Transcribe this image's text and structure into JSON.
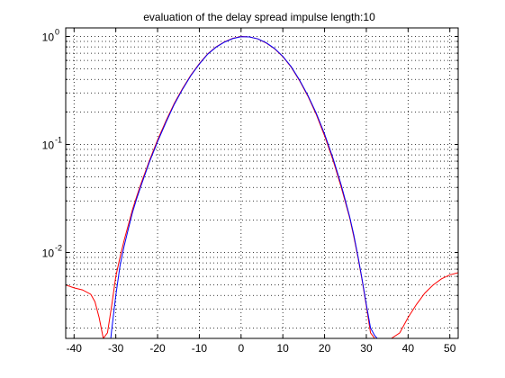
{
  "chart_data": {
    "type": "line",
    "title": "evaluation of the delay spread impulse length:10",
    "xlabel": "",
    "ylabel": "",
    "xlim": [
      -42,
      52
    ],
    "ylim": [
      0.0016,
      1.2
    ],
    "yscale": "log",
    "grid": true,
    "x_ticks": [
      -40,
      -30,
      -20,
      -10,
      0,
      10,
      20,
      30,
      40,
      50
    ],
    "x_tick_labels": [
      "-40",
      "-30",
      "-20",
      "-10",
      "0",
      "10",
      "20",
      "30",
      "40",
      "50"
    ],
    "y_ticks": [
      0.01,
      0.1,
      1
    ],
    "y_tick_labels": [
      {
        "base": "10",
        "exp": "-2"
      },
      {
        "base": "10",
        "exp": "-1"
      },
      {
        "base": "10",
        "exp": "0"
      }
    ],
    "series": [
      {
        "color": "#ff0000",
        "x": [
          -42,
          -40,
          -38,
          -36,
          -35,
          -34,
          -33,
          -32,
          -31,
          -30,
          -29,
          -28,
          -27,
          -26,
          -25,
          -24,
          -22,
          -20,
          -18,
          -16,
          -14,
          -12,
          -10,
          -8,
          -6,
          -4,
          -2,
          0,
          2,
          4,
          6,
          8,
          10,
          12,
          14,
          16,
          18,
          20,
          22,
          24,
          26,
          27,
          28,
          29,
          30,
          31,
          32,
          33,
          34,
          36,
          38,
          40,
          42,
          44,
          46,
          48,
          50,
          52
        ],
        "y": [
          0.005,
          0.0047,
          0.0045,
          0.0041,
          0.0035,
          0.0025,
          0.0016,
          0.0018,
          0.0032,
          0.006,
          0.009,
          0.013,
          0.018,
          0.025,
          0.033,
          0.043,
          0.07,
          0.11,
          0.165,
          0.24,
          0.33,
          0.44,
          0.56,
          0.69,
          0.8,
          0.89,
          0.96,
          1.0,
          0.99,
          0.95,
          0.87,
          0.77,
          0.65,
          0.52,
          0.39,
          0.28,
          0.19,
          0.12,
          0.072,
          0.04,
          0.021,
          0.014,
          0.009,
          0.0055,
          0.0032,
          0.0018,
          0.0016,
          0.0016,
          0.0016,
          0.0016,
          0.0018,
          0.0025,
          0.0033,
          0.0042,
          0.005,
          0.0057,
          0.0062,
          0.0065
        ]
      },
      {
        "color": "#0000ff",
        "x": [
          -31.2,
          -31,
          -30,
          -29,
          -28,
          -27,
          -26,
          -25,
          -24,
          -22,
          -20,
          -18,
          -16,
          -14,
          -12,
          -10,
          -8,
          -6,
          -4,
          -2,
          0,
          2,
          4,
          6,
          8,
          10,
          12,
          14,
          16,
          18,
          20,
          22,
          24,
          26,
          27,
          28,
          29,
          30,
          31,
          32,
          32.6
        ],
        "y": [
          0.0016,
          0.0019,
          0.004,
          0.0075,
          0.0115,
          0.0165,
          0.0235,
          0.0315,
          0.041,
          0.068,
          0.106,
          0.16,
          0.235,
          0.325,
          0.435,
          0.555,
          0.685,
          0.795,
          0.885,
          0.955,
          0.995,
          0.99,
          0.95,
          0.875,
          0.775,
          0.655,
          0.525,
          0.395,
          0.285,
          0.195,
          0.125,
          0.075,
          0.042,
          0.0215,
          0.0145,
          0.0092,
          0.0056,
          0.0033,
          0.002,
          0.0017,
          0.0016
        ]
      }
    ]
  }
}
